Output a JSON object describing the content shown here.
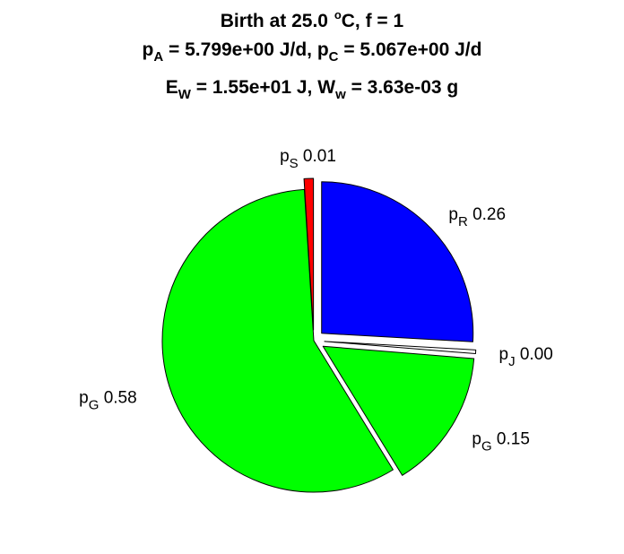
{
  "title": {
    "line1": {
      "prefix": "Birth at 25.0 ",
      "deg": "o",
      "suffix": "C, f = 1"
    },
    "line2": {
      "pA_sym": "p",
      "pA_sub": "A",
      "pA_text": " = 5.799e+00 J/d, ",
      "pC_sym": "p",
      "pC_sub": "C",
      "pC_text": " = 5.067e+00 J/d"
    },
    "line3": {
      "E_sym": "E",
      "E_sub": "W",
      "E_text": " = 1.55e+01 J, ",
      "W_sym": "W",
      "W_sub": "w",
      "W_text": " = 3.63e-03 g"
    }
  },
  "chart_data": {
    "type": "pie",
    "slices": [
      {
        "symbol": "p",
        "sub": "R",
        "value_label": "0.26",
        "value": 0.26,
        "color": "#0000ff",
        "exploded": true
      },
      {
        "symbol": "p",
        "sub": "J",
        "value_label": "0.00",
        "value": 0.004,
        "color": "#ffffff",
        "exploded": true
      },
      {
        "symbol": "p",
        "sub": "G",
        "value_label": "0.15",
        "value": 0.15,
        "color": "#00ff00",
        "exploded": true
      },
      {
        "symbol": "p",
        "sub": "G",
        "value_label": "0.58",
        "value": 0.58,
        "color": "#00ff00",
        "exploded": false
      },
      {
        "symbol": "p",
        "sub": "S",
        "value_label": "0.01",
        "value": 0.01,
        "color": "#ff0000",
        "exploded": true
      }
    ],
    "start": "top",
    "direction": "clockwise",
    "legend": "none"
  }
}
